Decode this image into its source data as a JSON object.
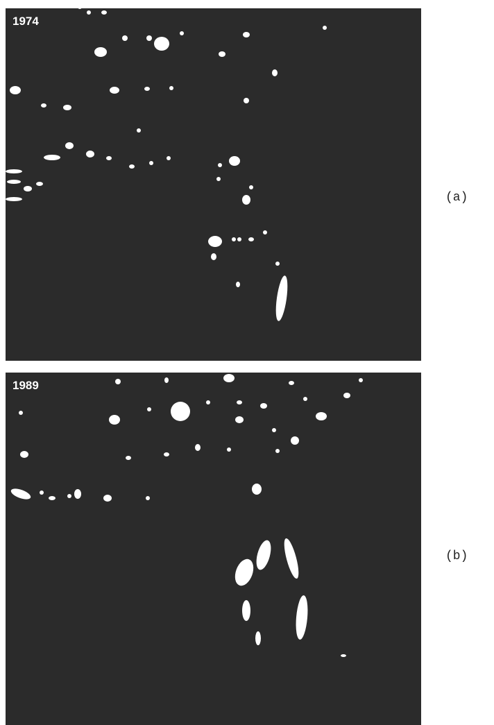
{
  "panels": [
    {
      "year": "1974",
      "label": "(a)"
    },
    {
      "year": "1989",
      "label": "(b)"
    }
  ]
}
